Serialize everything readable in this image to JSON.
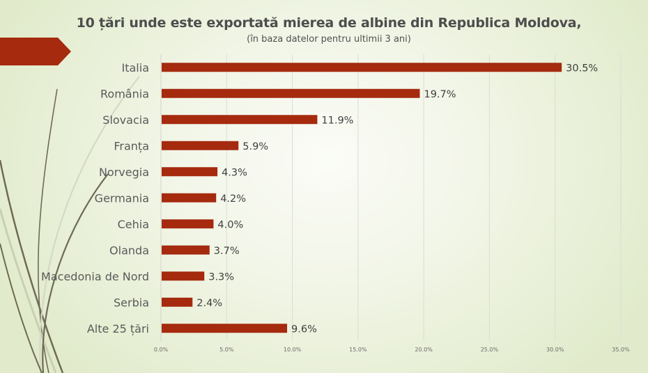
{
  "slide": {
    "title": "10 țări unde este exportată mierea de albine din Republica Moldova,",
    "subtitle": "(în baza datelor pentru ultimii 3 ani)",
    "accent_color": "#a52a0e"
  },
  "chart_data": {
    "type": "bar",
    "orientation": "horizontal",
    "title": "10 țări unde este exportată mierea de albine din Republica Moldova,",
    "subtitle": "(în baza datelor pentru ultimii 3 ani)",
    "xlabel": "",
    "ylabel": "",
    "categories": [
      "Italia",
      "România",
      "Slovacia",
      "Franța",
      "Norvegia",
      "Germania",
      "Cehia",
      "Olanda",
      "Macedonia de Nord",
      "Serbia",
      "Alte 25 țări"
    ],
    "values": [
      30.5,
      19.7,
      11.9,
      5.9,
      4.3,
      4.2,
      4.0,
      3.7,
      3.3,
      2.4,
      9.6
    ],
    "value_labels": [
      "30.5%",
      "19.7%",
      "11.9%",
      "5.9%",
      "4.3%",
      "4.2%",
      "4.0%",
      "3.7%",
      "3.3%",
      "2.4%",
      "9.6%"
    ],
    "xlim": [
      0,
      35
    ],
    "xticks": [
      0,
      5,
      10,
      15,
      20,
      25,
      30,
      35
    ],
    "xtick_labels": [
      "0.0%",
      "5.0%",
      "10.0%",
      "15.0%",
      "20.0%",
      "25.0%",
      "30.0%",
      "35.0%"
    ],
    "grid": true,
    "legend": "none",
    "bar_color": "#a52a0e"
  }
}
